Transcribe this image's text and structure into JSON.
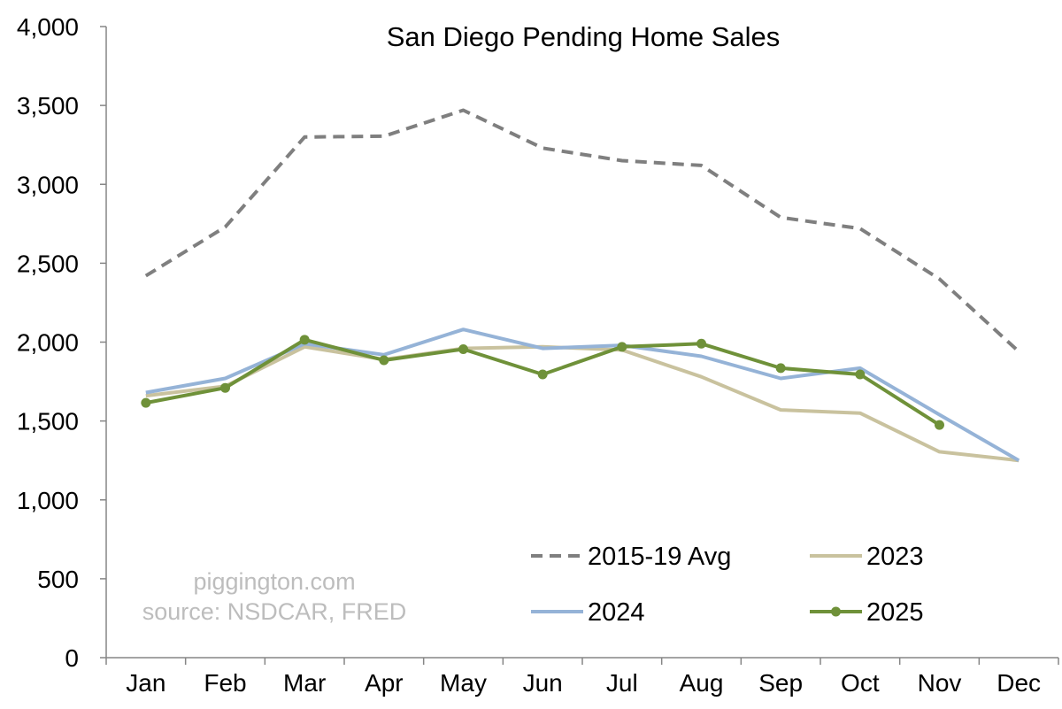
{
  "chart_data": {
    "type": "line",
    "title": "San Diego Pending Home Sales",
    "xlabel": "",
    "ylabel": "",
    "categories": [
      "Jan",
      "Feb",
      "Mar",
      "Apr",
      "May",
      "Jun",
      "Jul",
      "Aug",
      "Sep",
      "Oct",
      "Nov",
      "Dec"
    ],
    "y_ticks": [
      "0",
      "500",
      "1,000",
      "1,500",
      "2,000",
      "2,500",
      "3,000",
      "3,500",
      "4,000"
    ],
    "ylim": [
      0,
      4000
    ],
    "grid": false,
    "legend_position": "bottom-right",
    "series": [
      {
        "name": "2015-19 Avg",
        "color": "#7f7f7f",
        "style": "dashed",
        "markers": false,
        "values": [
          2420,
          2730,
          3300,
          3305,
          3470,
          3230,
          3150,
          3120,
          2790,
          2720,
          2400,
          1940
        ]
      },
      {
        "name": "2023",
        "color": "#c9c29e",
        "style": "solid",
        "markers": false,
        "values": [
          1660,
          1720,
          1970,
          1890,
          1960,
          1970,
          1950,
          1780,
          1570,
          1550,
          1305,
          1250
        ]
      },
      {
        "name": "2024",
        "color": "#95b3d7",
        "style": "solid",
        "markers": false,
        "values": [
          1680,
          1770,
          1990,
          1920,
          2080,
          1960,
          1980,
          1910,
          1770,
          1835,
          1540,
          1250
        ]
      },
      {
        "name": "2025",
        "color": "#6f9139",
        "style": "solid",
        "markers": true,
        "values": [
          1615,
          1710,
          2015,
          1885,
          1955,
          1795,
          1970,
          1990,
          1835,
          1795,
          1475,
          null
        ]
      }
    ],
    "annotations": [
      "piggington.com",
      "source: NSDCAR, FRED"
    ]
  }
}
